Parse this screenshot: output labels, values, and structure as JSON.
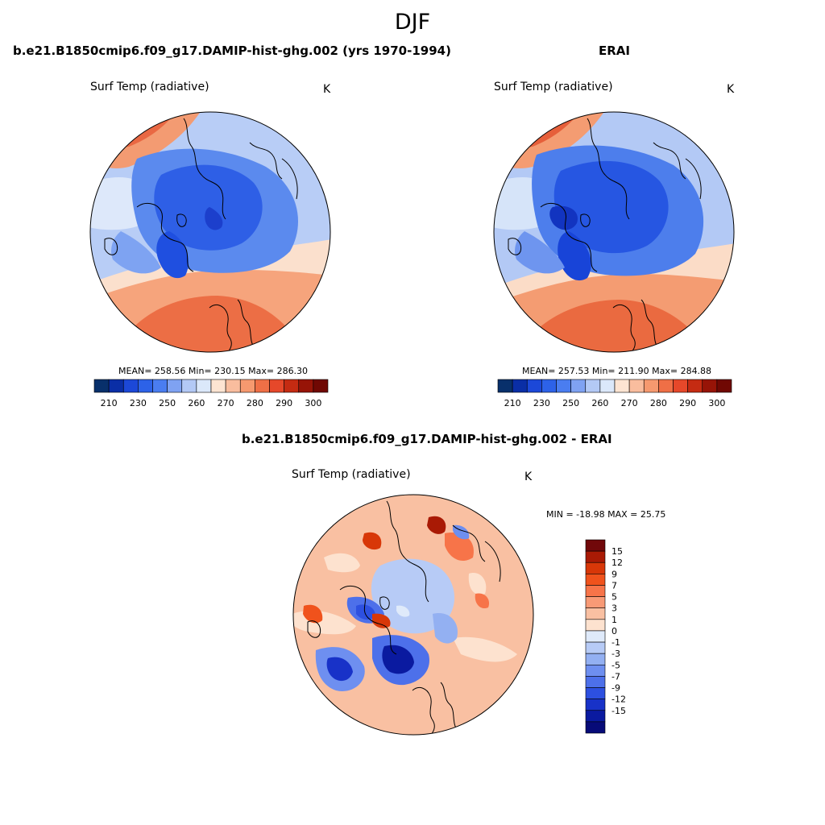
{
  "title": "DJF",
  "panels": {
    "model": {
      "title": "b.e21.B1850cmip6.f09_g17.DAMIP-hist-ghg.002 (yrs 1970-1994)",
      "variable": "Surf Temp (radiative)",
      "units": "K",
      "stats": "MEAN= 258.56  Min= 230.15  Max= 286.30"
    },
    "obs": {
      "title": "ERAI",
      "variable": "Surf Temp (radiative)",
      "units": "K",
      "stats": "MEAN= 257.53  Min= 211.90  Max= 284.88"
    },
    "diff": {
      "title": "b.e21.B1850cmip6.f09_g17.DAMIP-hist-ghg.002 - ERAI",
      "variable": "Surf Temp (radiative)",
      "units": "K",
      "stats": "MIN = -18.98 MAX =  25.75"
    }
  },
  "abs_colorbar": {
    "colors": [
      "#08306b",
      "#0a2ea6",
      "#1c48d8",
      "#2d62e8",
      "#4a7df0",
      "#7fa2f2",
      "#b3c9f5",
      "#dbe8fa",
      "#fde4d2",
      "#f9bd9e",
      "#f6996f",
      "#ef6f46",
      "#e6482a",
      "#c52b12",
      "#971407",
      "#700803"
    ],
    "labels": [
      "210",
      "230",
      "250",
      "260",
      "270",
      "280",
      "290",
      "300"
    ]
  },
  "diff_colorbar": {
    "colors": [
      "#71080a",
      "#a91a05",
      "#d83708",
      "#f0521c",
      "#f77449",
      "#f89a76",
      "#f9c0a2",
      "#fde2cf",
      "#dfeafa",
      "#b7cbf6",
      "#93b0f2",
      "#6e8ff0",
      "#4d70ea",
      "#2d50e0",
      "#1832c8",
      "#0a1aa0",
      "#070b78"
    ],
    "labels": [
      "15",
      "12",
      "9",
      "7",
      "5",
      "3",
      "1",
      "0",
      "-1",
      "-3",
      "-5",
      "-7",
      "-9",
      "-12",
      "-15"
    ]
  }
}
